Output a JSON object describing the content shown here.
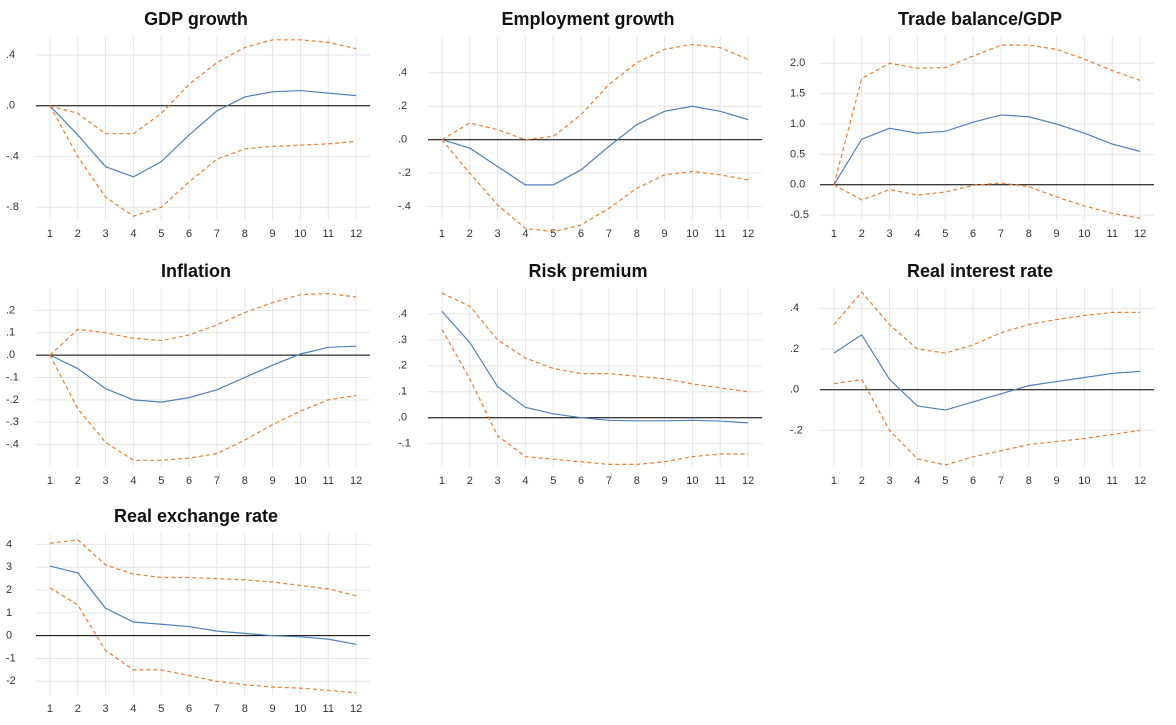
{
  "chart_data": [
    {
      "type": "line",
      "title": "GDP growth",
      "categories": [
        "1",
        "2",
        "3",
        "4",
        "5",
        "6",
        "7",
        "8",
        "9",
        "10",
        "11",
        "12"
      ],
      "ylim": [
        -0.9,
        0.55
      ],
      "yticks": [
        {
          "value": 0.4,
          "label": ".4"
        },
        {
          "value": 0,
          "label": ".0"
        },
        {
          "value": -0.4,
          "label": "-.4"
        },
        {
          "value": -0.8,
          "label": "-.8"
        }
      ],
      "grid": true,
      "series": [
        {
          "color": "#ed7d31",
          "style": "dashed",
          "values": [
            0,
            -0.06,
            -0.22,
            -0.22,
            -0.06,
            0.17,
            0.34,
            0.46,
            0.52,
            0.52,
            0.5,
            0.45
          ]
        },
        {
          "color": "#4f81bd",
          "style": "solid",
          "values": [
            0,
            -0.23,
            -0.48,
            -0.56,
            -0.44,
            -0.23,
            -0.04,
            0.07,
            0.11,
            0.12,
            0.1,
            0.08
          ]
        },
        {
          "color": "#ed7d31",
          "style": "dashed",
          "values": [
            0,
            -0.4,
            -0.72,
            -0.87,
            -0.8,
            -0.6,
            -0.42,
            -0.34,
            -0.32,
            -0.31,
            -0.3,
            -0.28
          ]
        }
      ]
    },
    {
      "type": "line",
      "title": "Employment growth",
      "categories": [
        "1",
        "2",
        "3",
        "4",
        "5",
        "6",
        "7",
        "8",
        "9",
        "10",
        "11",
        "12"
      ],
      "ylim": [
        -0.48,
        0.62
      ],
      "yticks": [
        {
          "value": 0.4,
          "label": ".4"
        },
        {
          "value": 0.2,
          "label": ".2"
        },
        {
          "value": 0,
          "label": ".0"
        },
        {
          "value": -0.2,
          "label": "-.2"
        },
        {
          "value": -0.4,
          "label": "-.4"
        }
      ],
      "grid": true,
      "series": [
        {
          "color": "#ed7d31",
          "style": "dashed",
          "values": [
            0,
            0.1,
            0.06,
            0,
            0.02,
            0.15,
            0.33,
            0.46,
            0.54,
            0.57,
            0.55,
            0.48
          ]
        },
        {
          "color": "#4f81bd",
          "style": "solid",
          "values": [
            0,
            -0.05,
            -0.16,
            -0.27,
            -0.27,
            -0.18,
            -0.04,
            0.09,
            0.17,
            0.2,
            0.17,
            0.12
          ]
        },
        {
          "color": "#ed7d31",
          "style": "dashed",
          "values": [
            0,
            -0.2,
            -0.39,
            -0.53,
            -0.55,
            -0.51,
            -0.41,
            -0.29,
            -0.21,
            -0.19,
            -0.21,
            -0.24
          ]
        }
      ]
    },
    {
      "type": "line",
      "title": "Trade balance/GDP",
      "categories": [
        "1",
        "2",
        "3",
        "4",
        "5",
        "6",
        "7",
        "8",
        "9",
        "10",
        "11",
        "12"
      ],
      "ylim": [
        -0.58,
        2.45
      ],
      "yticks": [
        {
          "value": 2,
          "label": "2.0"
        },
        1.5,
        {
          "value": 1,
          "label": "1.0"
        },
        0.5,
        {
          "value": 0,
          "label": "0.0"
        },
        -0.5
      ],
      "grid": true,
      "series": [
        {
          "color": "#ed7d31",
          "style": "dashed",
          "values": [
            0,
            1.75,
            2.0,
            1.92,
            1.93,
            2.12,
            2.3,
            2.3,
            2.23,
            2.07,
            1.88,
            1.72
          ]
        },
        {
          "color": "#4f81bd",
          "style": "solid",
          "values": [
            0,
            0.75,
            0.93,
            0.85,
            0.88,
            1.03,
            1.15,
            1.12,
            1.0,
            0.85,
            0.67,
            0.55
          ]
        },
        {
          "color": "#ed7d31",
          "style": "dashed",
          "values": [
            0,
            -0.25,
            -0.08,
            -0.17,
            -0.12,
            -0.01,
            0.03,
            -0.03,
            -0.2,
            -0.35,
            -0.47,
            -0.55
          ]
        }
      ]
    },
    {
      "type": "line",
      "title": "Inflation",
      "categories": [
        "1",
        "2",
        "3",
        "4",
        "5",
        "6",
        "7",
        "8",
        "9",
        "10",
        "11",
        "12"
      ],
      "ylim": [
        -0.5,
        0.3
      ],
      "yticks": [
        {
          "value": 0.2,
          "label": ".2"
        },
        {
          "value": 0.1,
          "label": ".1"
        },
        {
          "value": 0,
          "label": ".0"
        },
        {
          "value": -0.1,
          "label": "-.1"
        },
        {
          "value": -0.2,
          "label": "-.2"
        },
        {
          "value": -0.3,
          "label": "-.3"
        },
        {
          "value": -0.4,
          "label": "-.4"
        }
      ],
      "grid": true,
      "series": [
        {
          "color": "#ed7d31",
          "style": "dashed",
          "values": [
            0,
            0.115,
            0.1,
            0.075,
            0.065,
            0.09,
            0.135,
            0.19,
            0.235,
            0.27,
            0.275,
            0.26
          ]
        },
        {
          "color": "#4f81bd",
          "style": "solid",
          "values": [
            0,
            -0.06,
            -0.15,
            -0.2,
            -0.21,
            -0.19,
            -0.155,
            -0.1,
            -0.045,
            0.005,
            0.035,
            0.04
          ]
        },
        {
          "color": "#ed7d31",
          "style": "dashed",
          "values": [
            0,
            -0.24,
            -0.39,
            -0.47,
            -0.47,
            -0.46,
            -0.44,
            -0.38,
            -0.31,
            -0.25,
            -0.2,
            -0.18
          ]
        }
      ]
    },
    {
      "type": "line",
      "title": "Risk premium",
      "categories": [
        "1",
        "2",
        "3",
        "4",
        "5",
        "6",
        "7",
        "8",
        "9",
        "10",
        "11",
        "12"
      ],
      "ylim": [
        -0.19,
        0.5
      ],
      "yticks": [
        {
          "value": 0.4,
          "label": ".4"
        },
        {
          "value": 0.3,
          "label": ".3"
        },
        {
          "value": 0.2,
          "label": ".2"
        },
        {
          "value": 0.1,
          "label": ".1"
        },
        {
          "value": 0,
          "label": ".0"
        },
        {
          "value": -0.1,
          "label": "-.1"
        }
      ],
      "grid": true,
      "series": [
        {
          "color": "#ed7d31",
          "style": "dashed",
          "values": [
            0.48,
            0.43,
            0.3,
            0.23,
            0.19,
            0.17,
            0.17,
            0.16,
            0.15,
            0.13,
            0.115,
            0.1
          ]
        },
        {
          "color": "#4f81bd",
          "style": "solid",
          "values": [
            0.41,
            0.29,
            0.12,
            0.04,
            0.015,
            0,
            -0.01,
            -0.012,
            -0.012,
            -0.01,
            -0.013,
            -0.02
          ]
        },
        {
          "color": "#ed7d31",
          "style": "dashed",
          "values": [
            0.34,
            0.15,
            -0.07,
            -0.15,
            -0.16,
            -0.17,
            -0.18,
            -0.18,
            -0.17,
            -0.15,
            -0.14,
            -0.14
          ]
        }
      ]
    },
    {
      "type": "line",
      "title": "Real interest rate",
      "categories": [
        "1",
        "2",
        "3",
        "4",
        "5",
        "6",
        "7",
        "8",
        "9",
        "10",
        "11",
        "12"
      ],
      "ylim": [
        -0.38,
        0.5
      ],
      "yticks": [
        {
          "value": 0.4,
          "label": ".4"
        },
        {
          "value": 0.2,
          "label": ".2"
        },
        {
          "value": 0,
          "label": ".0"
        },
        {
          "value": -0.2,
          "label": "-.2"
        }
      ],
      "grid": true,
      "series": [
        {
          "color": "#ed7d31",
          "style": "dashed",
          "values": [
            0.32,
            0.48,
            0.32,
            0.2,
            0.18,
            0.22,
            0.28,
            0.32,
            0.345,
            0.365,
            0.38,
            0.38
          ]
        },
        {
          "color": "#4f81bd",
          "style": "solid",
          "values": [
            0.18,
            0.27,
            0.05,
            -0.08,
            -0.1,
            -0.06,
            -0.02,
            0.02,
            0.04,
            0.06,
            0.08,
            0.09
          ]
        },
        {
          "color": "#ed7d31",
          "style": "dashed",
          "values": [
            0.03,
            0.05,
            -0.2,
            -0.34,
            -0.37,
            -0.33,
            -0.3,
            -0.27,
            -0.255,
            -0.24,
            -0.22,
            -0.2
          ]
        }
      ]
    },
    {
      "type": "line",
      "title": "Real exchange rate",
      "categories": [
        "1",
        "2",
        "3",
        "4",
        "5",
        "6",
        "7",
        "8",
        "9",
        "10",
        "11",
        "12"
      ],
      "ylim": [
        -2.6,
        4.5
      ],
      "yticks": [
        4,
        3,
        2,
        1,
        0,
        -1,
        -2
      ],
      "grid": true,
      "series": [
        {
          "color": "#ed7d31",
          "style": "dashed",
          "values": [
            4.05,
            4.2,
            3.1,
            2.7,
            2.55,
            2.55,
            2.5,
            2.45,
            2.35,
            2.2,
            2.05,
            1.75
          ]
        },
        {
          "color": "#4f81bd",
          "style": "solid",
          "values": [
            3.05,
            2.75,
            1.2,
            0.6,
            0.5,
            0.4,
            0.2,
            0.1,
            0,
            -0.05,
            -0.15,
            -0.38
          ]
        },
        {
          "color": "#ed7d31",
          "style": "dashed",
          "values": [
            2.1,
            1.35,
            -0.65,
            -1.5,
            -1.5,
            -1.75,
            -2.0,
            -2.15,
            -2.25,
            -2.3,
            -2.4,
            -2.5
          ]
        }
      ]
    }
  ]
}
